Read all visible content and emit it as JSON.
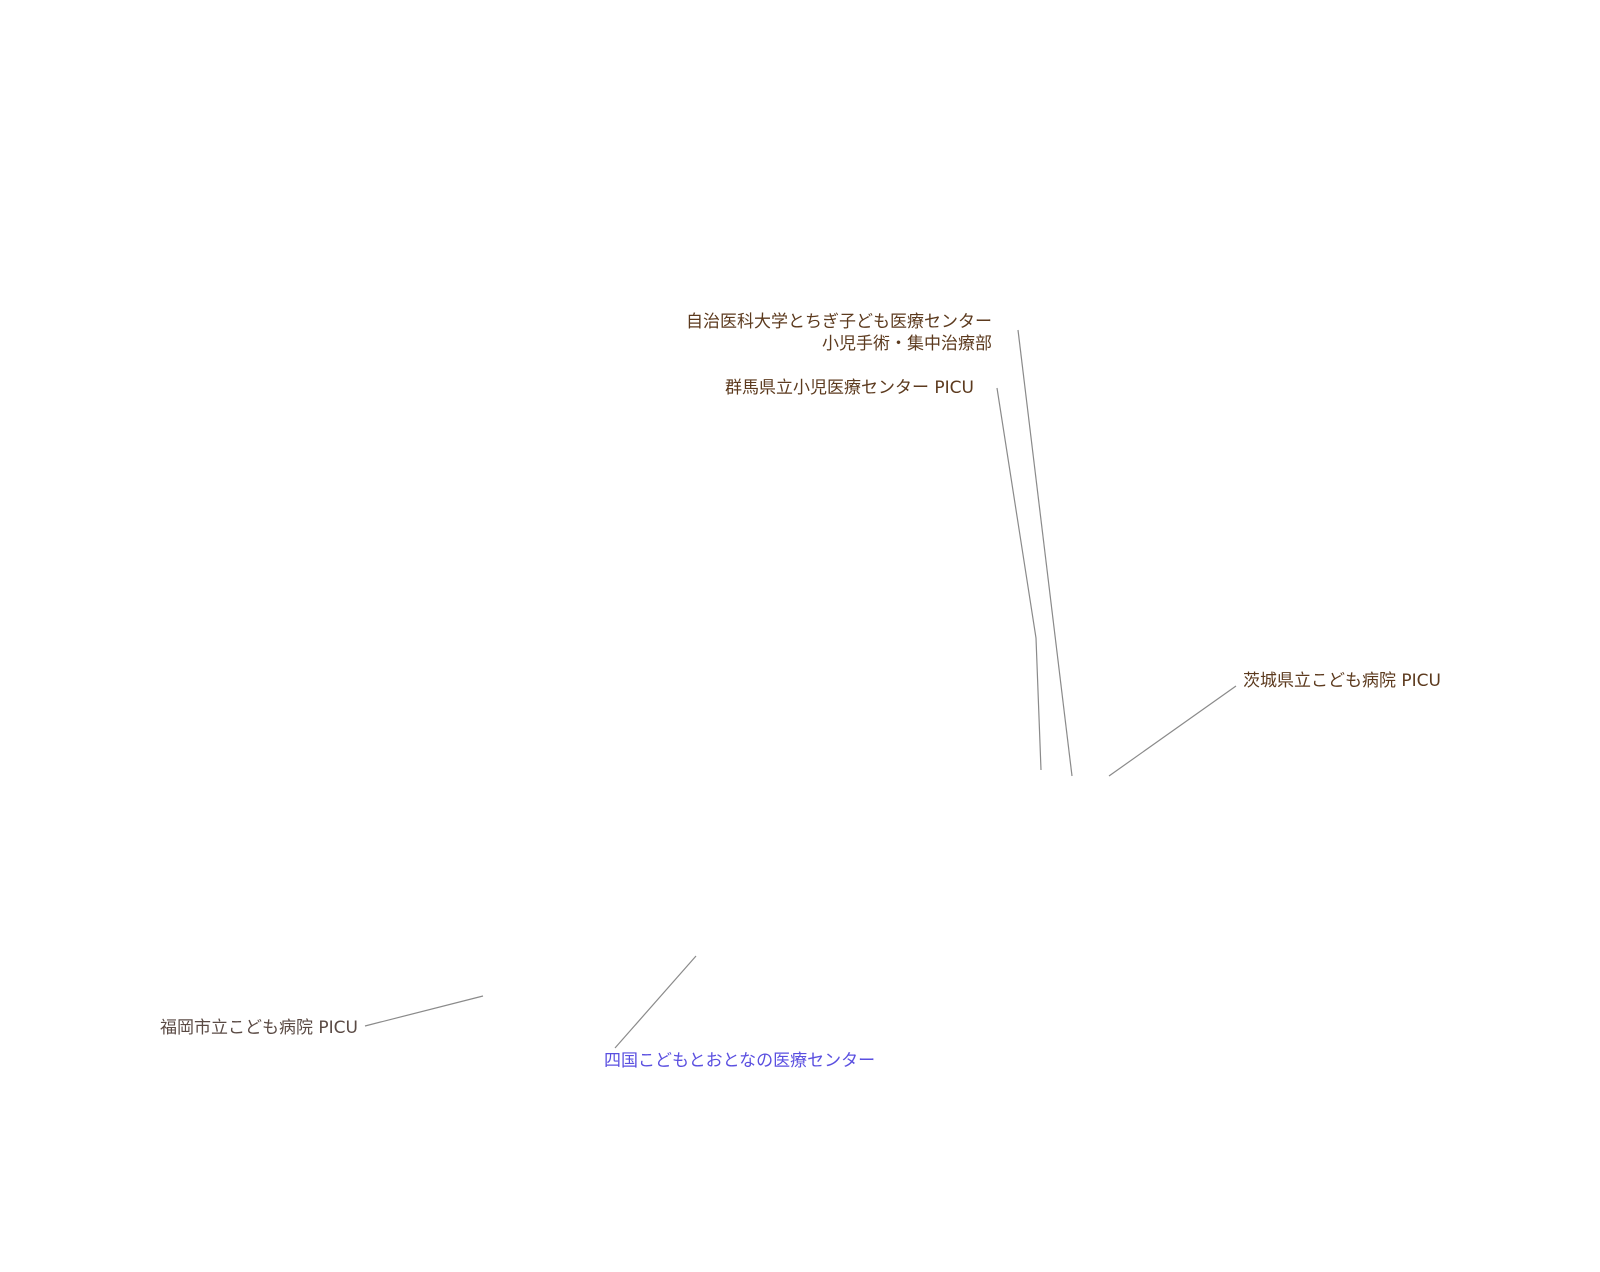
{
  "colors": {
    "label": "#5c3a1e",
    "label_muted": "#5a4a44",
    "label_link": "#5a4fe0",
    "leader": "#8a8a8a"
  },
  "labels": {
    "jichi": {
      "line1": "自治医科大学とちぎ子ども医療センター",
      "line2": "小児手術・集中治療部"
    },
    "gunma": {
      "text": "群馬県立小児医療センター PICU"
    },
    "ibaraki": {
      "text": "茨城県立こども病院 PICU"
    },
    "fukuoka": {
      "text": "福岡市立こども病院 PICU"
    },
    "shikoku": {
      "text": "四国こどもとおとなの医療センター"
    }
  }
}
